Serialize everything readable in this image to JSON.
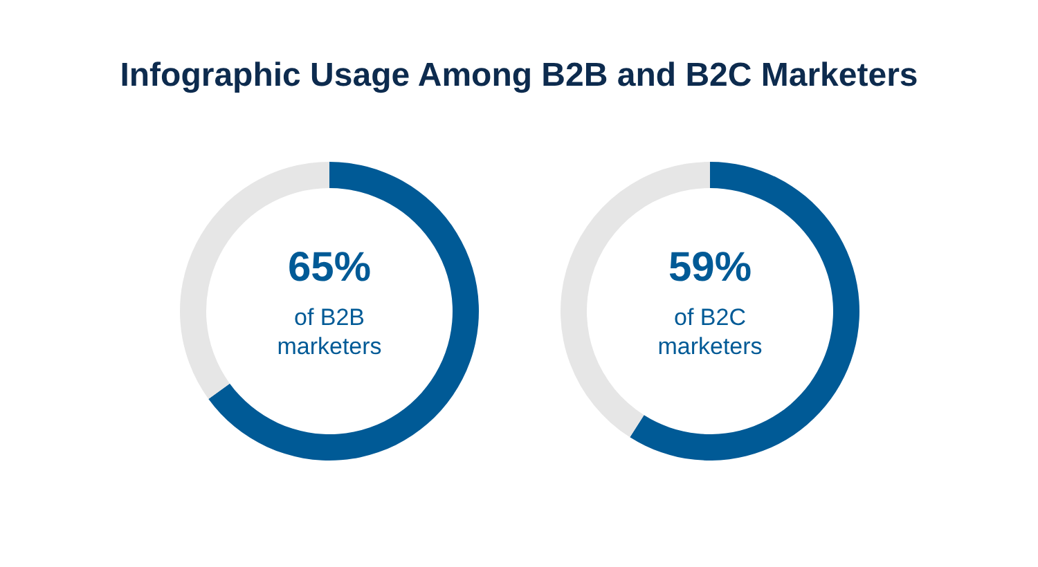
{
  "chart_data": [
    {
      "type": "donut",
      "title": "Infographic Usage Among B2B and B2C Marketers",
      "categories": [
        null,
        null
      ],
      "values": [
        65,
        35
      ],
      "colors": [
        "#005a96",
        "#e6e6e6"
      ],
      "value_labels": [
        "65%",
        null
      ],
      "annotations": [
        "of B2B marketers"
      ]
    },
    {
      "type": "donut",
      "categories": [
        null,
        null
      ],
      "values": [
        59,
        41
      ],
      "colors": [
        "#005a96",
        "#e6e6e6"
      ],
      "value_labels": [
        "59%",
        null
      ],
      "annotations": [
        "of B2C marketers"
      ]
    }
  ]
}
